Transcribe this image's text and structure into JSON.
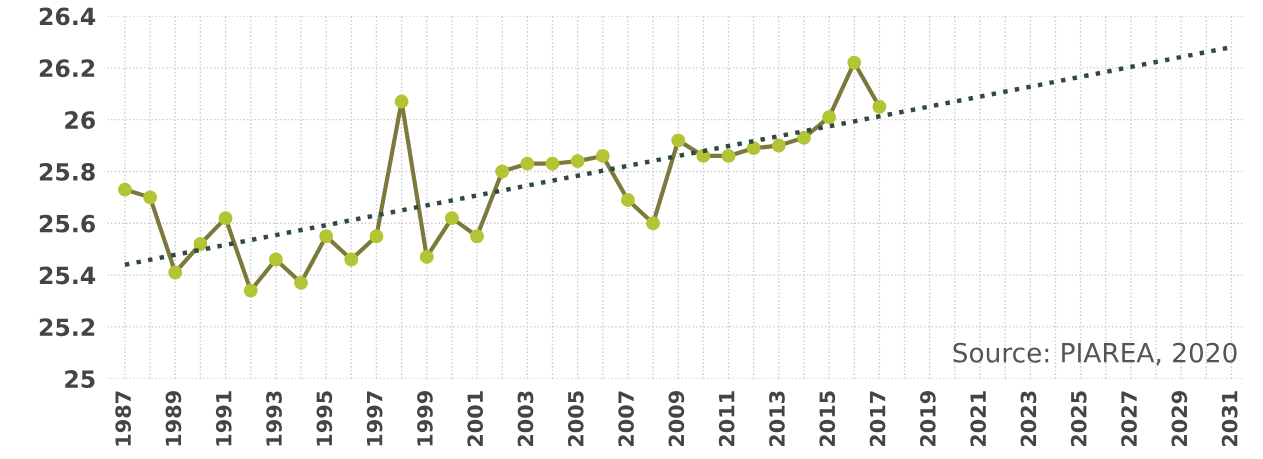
{
  "chart_data": {
    "type": "line",
    "x": [
      1987,
      1988,
      1989,
      1990,
      1991,
      1992,
      1993,
      1994,
      1995,
      1996,
      1997,
      1998,
      1999,
      2000,
      2001,
      2002,
      2003,
      2004,
      2005,
      2006,
      2007,
      2008,
      2009,
      2010,
      2011,
      2012,
      2013,
      2014,
      2015,
      2016,
      2017
    ],
    "series": [
      {
        "color": "#7b7a3c",
        "marker": "circle",
        "line_style": "solid",
        "values": [
          25.73,
          25.7,
          25.41,
          25.52,
          25.62,
          25.34,
          25.46,
          25.37,
          25.55,
          25.46,
          25.55,
          26.07,
          25.47,
          25.62,
          25.55,
          25.8,
          25.83,
          25.83,
          25.84,
          25.86,
          25.69,
          25.6,
          25.92,
          25.86,
          25.86,
          25.89,
          25.9,
          25.93,
          26.01,
          26.22,
          26.05
        ]
      },
      {
        "type": "line",
        "color": "#2e4a45",
        "marker": "none",
        "line_style": "dotted",
        "x": [
          1987,
          2031
        ],
        "values": [
          25.44,
          26.28
        ]
      }
    ],
    "xlim": [
      1986.3,
      2031.5
    ],
    "xticks": [
      1987,
      {
        "value": 1988,
        "label": null
      },
      1989,
      {
        "value": 1990,
        "label": null
      },
      1991,
      {
        "value": 1992,
        "label": null
      },
      1993,
      {
        "value": 1994,
        "label": null
      },
      1995,
      {
        "value": 1996,
        "label": null
      },
      1997,
      {
        "value": 1998,
        "label": null
      },
      1999,
      {
        "value": 2000,
        "label": null
      },
      2001,
      {
        "value": 2002,
        "label": null
      },
      2003,
      {
        "value": 2004,
        "label": null
      },
      2005,
      {
        "value": 2006,
        "label": null
      },
      2007,
      {
        "value": 2008,
        "label": null
      },
      2009,
      {
        "value": 2010,
        "label": null
      },
      2011,
      {
        "value": 2012,
        "label": null
      },
      2013,
      {
        "value": 2014,
        "label": null
      },
      2015,
      {
        "value": 2016,
        "label": null
      },
      2017,
      {
        "value": 2018,
        "label": null
      },
      2019,
      {
        "value": 2020,
        "label": null
      },
      2021,
      {
        "value": 2022,
        "label": null
      },
      2023,
      {
        "value": 2024,
        "label": null
      },
      2025,
      {
        "value": 2026,
        "label": null
      },
      2027,
      {
        "value": 2028,
        "label": null
      },
      2029,
      {
        "value": 2030,
        "label": null
      },
      2031
    ],
    "ylim": [
      25,
      26.4
    ],
    "yticks": [
      25,
      25.2,
      25.4,
      25.6,
      25.8,
      26,
      26.2,
      26.4
    ],
    "grid": true,
    "annotations": [
      "Source: PIAREA, 2020"
    ]
  }
}
